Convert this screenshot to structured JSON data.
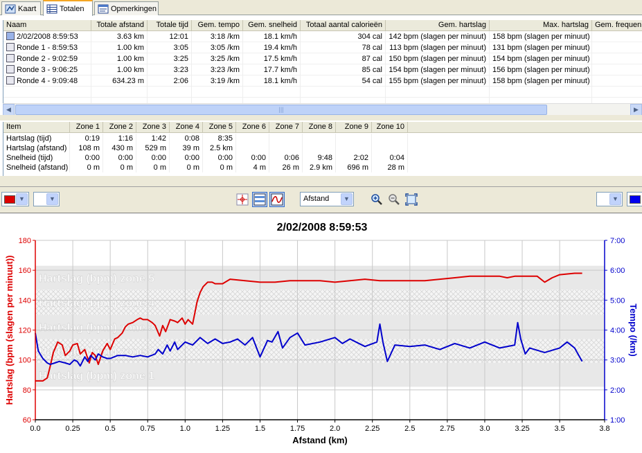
{
  "tabs": [
    {
      "label": "Kaart",
      "icon": "map-icon"
    },
    {
      "label": "Totalen",
      "icon": "table-icon"
    },
    {
      "label": "Opmerkingen",
      "icon": "notes-icon"
    }
  ],
  "summary_table": {
    "columns": [
      "Naam",
      "Totale afstand",
      "Totale tijd",
      "Gem. tempo",
      "Gem. snelheid",
      "Totaal aantal calorieën",
      "Gem. hartslag",
      "Max. hartslag",
      "Gem. frequen"
    ],
    "rows": [
      [
        "2/02/2008 8:59:53",
        "3.63 km",
        "12:01",
        "3:18 /km",
        "18.1 km/h",
        "304 cal",
        "142 bpm (slagen per minuut)",
        "158 bpm (slagen per minuut)",
        ""
      ],
      [
        "Ronde 1 - 8:59:53",
        "1.00 km",
        "3:05",
        "3:05 /km",
        "19.4 km/h",
        "78 cal",
        "113 bpm (slagen per minuut)",
        "131 bpm (slagen per minuut)",
        ""
      ],
      [
        "Ronde 2 - 9:02:59",
        "1.00 km",
        "3:25",
        "3:25 /km",
        "17.5 km/h",
        "87 cal",
        "150 bpm (slagen per minuut)",
        "154 bpm (slagen per minuut)",
        ""
      ],
      [
        "Ronde 3 - 9:06:25",
        "1.00 km",
        "3:23",
        "3:23 /km",
        "17.7 km/h",
        "85 cal",
        "154 bpm (slagen per minuut)",
        "156 bpm (slagen per minuut)",
        ""
      ],
      [
        "Ronde 4 - 9:09:48",
        "634.23 m",
        "2:06",
        "3:19 /km",
        "18.1 km/h",
        "54 cal",
        "155 bpm (slagen per minuut)",
        "158 bpm (slagen per minuut)",
        ""
      ]
    ]
  },
  "zones_table": {
    "columns": [
      "Item",
      "Zone 1",
      "Zone 2",
      "Zone 3",
      "Zone 4",
      "Zone 5",
      "Zone 6",
      "Zone 7",
      "Zone 8",
      "Zone 9",
      "Zone 10"
    ],
    "rows": [
      [
        "Hartslag (tijd)",
        "0:19",
        "1:16",
        "1:42",
        "0:08",
        "8:35",
        "",
        "",
        "",
        "",
        ""
      ],
      [
        "Hartslag (afstand)",
        "108 m",
        "430 m",
        "529 m",
        "39 m",
        "2.5 km",
        "",
        "",
        "",
        "",
        ""
      ],
      [
        "Snelheid (tijd)",
        "0:00",
        "0:00",
        "0:00",
        "0:00",
        "0:00",
        "0:00",
        "0:06",
        "9:48",
        "2:02",
        "0:04"
      ],
      [
        "Snelheid (afstand)",
        "0 m",
        "0 m",
        "0 m",
        "0 m",
        "0 m",
        "4 m",
        "26 m",
        "2.9 km",
        "696 m",
        "28 m"
      ]
    ]
  },
  "toolbar": {
    "left_color": "#dd0000",
    "right_color": "#0000ee",
    "x_axis_select": "Afstand",
    "buttons": [
      "crosshair-icon",
      "zones-icon",
      "smooth-icon",
      "zoom-in-icon",
      "zoom-out-icon",
      "zoom-fit-icon"
    ]
  },
  "chart_data": {
    "type": "line",
    "title": "2/02/2008 8:59:53",
    "xlabel": "Afstand (km)",
    "ylabel_left": "Hartslag (bpm (slagen per minuut))",
    "ylabel_right": "Tempo (/km)",
    "xlim": [
      0,
      3.8
    ],
    "ylim_left": [
      60,
      180
    ],
    "ylim_right": [
      "1:00",
      "7:00"
    ],
    "x_ticks": [
      "0.0",
      "0.25",
      "0.5",
      "0.75",
      "1.0",
      "1.25",
      "1.5",
      "1.75",
      "2.0",
      "2.25",
      "2.5",
      "2.75",
      "3.0",
      "3.25",
      "3.5",
      "3.8"
    ],
    "y_ticks_left": [
      "60",
      "80",
      "100",
      "120",
      "140",
      "160",
      "180"
    ],
    "y_ticks_right": [
      "1:00",
      "2:00",
      "3:00",
      "4:00",
      "5:00",
      "6:00",
      "7:00"
    ],
    "grid": true,
    "zones": [
      {
        "label": "Hartslag (bpm) zone 5",
        "from": 147,
        "to": 163,
        "style": "solid"
      },
      {
        "label": "Hartslag (bpm) zone 4",
        "from": 130,
        "to": 147,
        "style": "hatched"
      },
      {
        "label": "Hartslag (bpm) zone 3",
        "from": 114,
        "to": 130,
        "style": "solid"
      },
      {
        "label": "Hartslag (bpm) zone 2",
        "from": 98,
        "to": 114,
        "style": "hatched"
      },
      {
        "label": "Hartslag (bpm) zone 1",
        "from": 82,
        "to": 98,
        "style": "solid"
      }
    ],
    "series": [
      {
        "axis": "left",
        "color": "#dd0000",
        "x": [
          0,
          0.05,
          0.08,
          0.1,
          0.12,
          0.15,
          0.18,
          0.2,
          0.23,
          0.25,
          0.28,
          0.3,
          0.33,
          0.36,
          0.38,
          0.4,
          0.42,
          0.45,
          0.48,
          0.5,
          0.53,
          0.55,
          0.58,
          0.6,
          0.62,
          0.65,
          0.68,
          0.7,
          0.72,
          0.75,
          0.78,
          0.8,
          0.83,
          0.85,
          0.87,
          0.9,
          0.93,
          0.95,
          0.98,
          1.0,
          1.02,
          1.05,
          1.08,
          1.1,
          1.12,
          1.15,
          1.18,
          1.2,
          1.25,
          1.3,
          1.4,
          1.5,
          1.6,
          1.7,
          1.8,
          1.9,
          2.0,
          2.1,
          2.2,
          2.3,
          2.4,
          2.5,
          2.6,
          2.7,
          2.8,
          2.9,
          3.0,
          3.1,
          3.15,
          3.2,
          3.3,
          3.35,
          3.4,
          3.45,
          3.5,
          3.6,
          3.65
        ],
        "values": [
          86,
          86,
          88,
          96,
          105,
          112,
          110,
          103,
          106,
          110,
          111,
          104,
          107,
          98,
          105,
          103,
          97,
          106,
          111,
          107,
          114,
          115,
          118,
          122,
          124,
          125,
          127,
          128,
          127,
          127,
          125,
          123,
          116,
          123,
          119,
          127,
          126,
          125,
          128,
          124,
          127,
          124,
          139,
          145,
          149,
          152,
          152,
          151,
          151,
          154,
          153,
          152,
          152,
          153,
          153,
          153,
          152,
          153,
          154,
          153,
          153,
          153,
          153,
          154,
          155,
          156,
          156,
          156,
          155,
          156,
          156,
          156,
          152,
          155,
          157,
          158,
          158
        ]
      },
      {
        "axis": "right",
        "color": "#0000cc",
        "x": [
          0,
          0.02,
          0.05,
          0.08,
          0.1,
          0.13,
          0.16,
          0.2,
          0.23,
          0.26,
          0.28,
          0.3,
          0.33,
          0.35,
          0.37,
          0.4,
          0.42,
          0.45,
          0.48,
          0.5,
          0.55,
          0.6,
          0.65,
          0.7,
          0.75,
          0.8,
          0.82,
          0.85,
          0.88,
          0.9,
          0.93,
          0.95,
          1.0,
          1.05,
          1.1,
          1.15,
          1.2,
          1.25,
          1.3,
          1.35,
          1.4,
          1.45,
          1.5,
          1.55,
          1.58,
          1.62,
          1.65,
          1.7,
          1.75,
          1.8,
          1.9,
          2.0,
          2.05,
          2.1,
          2.2,
          2.28,
          2.3,
          2.32,
          2.35,
          2.4,
          2.5,
          2.6,
          2.7,
          2.8,
          2.9,
          3.0,
          3.1,
          3.2,
          3.22,
          3.24,
          3.27,
          3.3,
          3.4,
          3.5,
          3.55,
          3.6,
          3.65
        ],
        "values": [
          3.9,
          3.3,
          3.05,
          2.9,
          2.85,
          2.9,
          2.95,
          2.9,
          2.85,
          3.0,
          2.95,
          2.8,
          3.1,
          2.95,
          3.15,
          3.0,
          3.2,
          3.1,
          3.05,
          3.05,
          3.15,
          3.15,
          3.1,
          3.15,
          3.1,
          3.2,
          3.35,
          3.2,
          3.5,
          3.3,
          3.6,
          3.35,
          3.6,
          3.5,
          3.75,
          3.55,
          3.7,
          3.55,
          3.6,
          3.7,
          3.5,
          3.75,
          3.1,
          3.65,
          3.6,
          3.95,
          3.4,
          3.75,
          3.9,
          3.5,
          3.6,
          3.75,
          3.55,
          3.7,
          3.45,
          3.6,
          4.2,
          3.6,
          2.95,
          3.5,
          3.45,
          3.5,
          3.35,
          3.55,
          3.4,
          3.6,
          3.4,
          3.5,
          4.25,
          3.7,
          3.2,
          3.4,
          3.25,
          3.4,
          3.6,
          3.4,
          2.95
        ]
      }
    ]
  }
}
